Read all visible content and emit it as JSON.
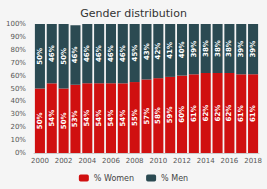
{
  "chart_data": {
    "type": "bar",
    "title": "Gender distribution",
    "categories": [
      "2000",
      null,
      "2002",
      null,
      "2004",
      null,
      "2006",
      null,
      "2008",
      null,
      "2010",
      null,
      "2012",
      null,
      "2014",
      null,
      "2016",
      null,
      "2018"
    ],
    "series": [
      {
        "name": "% Women",
        "color": "#d01010",
        "values": [
          50,
          54,
          50,
          53,
          54,
          54,
          54,
          54,
          55,
          57,
          58,
          59,
          60,
          61,
          62,
          62,
          62,
          61,
          61
        ],
        "value_labels": [
          "50%",
          "54%",
          "50%",
          "53%",
          "54%",
          "54%",
          "54%",
          "54%",
          "55%",
          "57%",
          "58%",
          "59%",
          "60%",
          "61%",
          "62%",
          "62%",
          "62%",
          "61%",
          "61%"
        ]
      },
      {
        "name": "% Men",
        "color": "#2b4a52",
        "values": [
          50,
          46,
          50,
          46,
          46,
          46,
          46,
          46,
          45,
          43,
          42,
          41,
          40,
          39,
          38,
          38,
          38,
          39,
          39
        ],
        "value_labels": [
          "50%",
          "46%",
          "50%",
          "46%",
          "46%",
          "46%",
          "46%",
          "46%",
          "45%",
          "43%",
          "42%",
          "41%",
          "40%",
          "39%",
          "38%",
          "38%",
          "38%",
          "39%",
          "39%"
        ]
      }
    ],
    "stacked": true,
    "data_labels": true,
    "ylim": [
      0,
      100
    ],
    "yticks": [
      {
        "value": 0,
        "label": "0%"
      },
      {
        "value": 10,
        "label": "10%"
      },
      {
        "value": 20,
        "label": "20%"
      },
      {
        "value": 30,
        "label": "30%"
      },
      {
        "value": 40,
        "label": "40%"
      },
      {
        "value": 50,
        "label": "50%"
      },
      {
        "value": 60,
        "label": "60%"
      },
      {
        "value": 70,
        "label": "70%"
      },
      {
        "value": 80,
        "label": "80%"
      },
      {
        "value": 90,
        "label": "90%"
      },
      {
        "value": 100,
        "label": "100%"
      }
    ],
    "grid": false,
    "legend": "bottom"
  }
}
